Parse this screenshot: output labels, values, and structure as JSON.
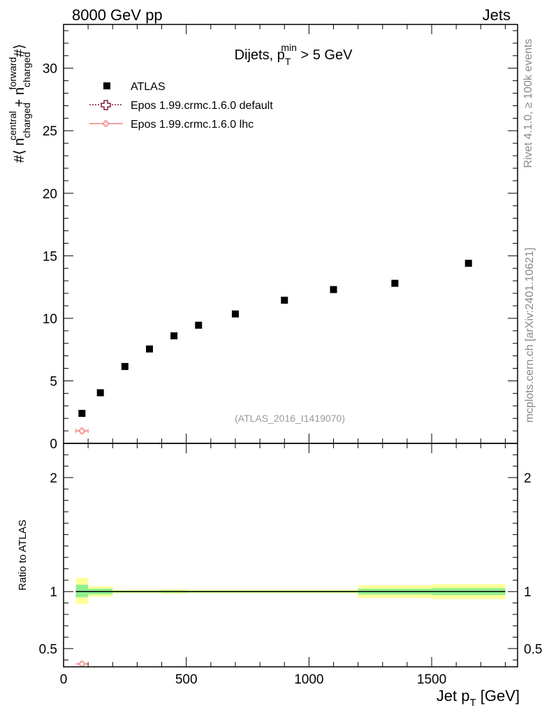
{
  "header": {
    "left": "8000 GeV pp",
    "right": "Jets"
  },
  "side_labels": {
    "rivet": "Rivet 4.1.0, ≥ 100k events",
    "mcplots": "mcplots.cern.ch [arXiv:2401.10621]"
  },
  "colors": {
    "data": "#000000",
    "epos_default": "#7b1f3f",
    "epos_lhc": "#f08080",
    "band_inner": "#90f090",
    "band_outer": "#ffff99"
  },
  "chart_data": [
    {
      "type": "scatter",
      "title": "Dijets, p_T^min > 5 GeV",
      "title_parts": {
        "main": "Dijets, p",
        "sup": "min",
        "sub": "T",
        "tail": " > 5 GeV"
      },
      "ylabel": "#⟨ n_charged^central + n_charged^forward #⟩",
      "ylabel_parts": {
        "pre": "#⟨ n",
        "sup1": "central",
        "sub1": "charged",
        "mid": " + n",
        "sup2": "forward",
        "sub2": "charged",
        "post": "#⟩"
      },
      "xlim": [
        0,
        1850
      ],
      "ylim": [
        0,
        33.5
      ],
      "yticks": [
        0,
        5,
        10,
        15,
        20,
        25,
        30
      ],
      "ytick_labels": [
        "0",
        "5",
        "10",
        "15",
        "20",
        "25",
        "30"
      ],
      "watermark": "(ATLAS_2016_I1419070)",
      "legend": [
        "ATLAS",
        "Epos 1.99.crmc.1.6.0 default",
        "Epos 1.99.crmc.1.6.0 lhc"
      ],
      "series": [
        {
          "name": "ATLAS",
          "x": [
            75,
            150,
            250,
            350,
            450,
            550,
            700,
            900,
            1100,
            1350,
            1650
          ],
          "y": [
            2.4,
            4.05,
            6.15,
            7.55,
            8.6,
            9.45,
            10.35,
            11.45,
            12.3,
            12.8,
            14.4
          ]
        },
        {
          "name": "Epos 1.99.crmc.1.6.0 lhc",
          "x": [
            75
          ],
          "y": [
            1.0
          ],
          "xerr": [
            25
          ]
        }
      ]
    },
    {
      "type": "ratio",
      "ylabel": "Ratio to ATLAS",
      "xlabel": "Jet p_T [GeV]",
      "xlabel_parts": {
        "main": "Jet p",
        "sub": "T",
        "tail": " [GeV]"
      },
      "xlim": [
        0,
        1850
      ],
      "ylim": [
        0.34,
        2.3
      ],
      "xticks": [
        0,
        500,
        1000,
        1500
      ],
      "xtick_labels": [
        "0",
        "500",
        "1000",
        "1500"
      ],
      "yticks": [
        0.5,
        1,
        2
      ],
      "ytick_labels": [
        "0.5",
        "1",
        "2"
      ],
      "bands": [
        {
          "x0": 50,
          "x1": 100,
          "inner": [
            0.95,
            1.06
          ],
          "outer": [
            0.89,
            1.12
          ]
        },
        {
          "x0": 100,
          "x1": 200,
          "inner": [
            0.975,
            1.025
          ],
          "outer": [
            0.955,
            1.045
          ]
        },
        {
          "x0": 200,
          "x1": 400,
          "inner": [
            0.992,
            1.008
          ],
          "outer": [
            0.985,
            1.015
          ]
        },
        {
          "x0": 400,
          "x1": 500,
          "inner": [
            0.99,
            1.01
          ],
          "outer": [
            0.98,
            1.02
          ]
        },
        {
          "x0": 500,
          "x1": 1200,
          "inner": [
            0.992,
            1.008
          ],
          "outer": [
            0.985,
            1.015
          ]
        },
        {
          "x0": 1200,
          "x1": 1500,
          "inner": [
            0.975,
            1.025
          ],
          "outer": [
            0.945,
            1.055
          ]
        },
        {
          "x0": 1500,
          "x1": 1800,
          "inner": [
            0.97,
            1.03
          ],
          "outer": [
            0.935,
            1.065
          ]
        }
      ],
      "series": [
        {
          "name": "Epos 1.99.crmc.1.6.0 lhc",
          "x": [
            75
          ],
          "y": [
            0.365
          ],
          "xerr": [
            25
          ]
        }
      ]
    }
  ]
}
